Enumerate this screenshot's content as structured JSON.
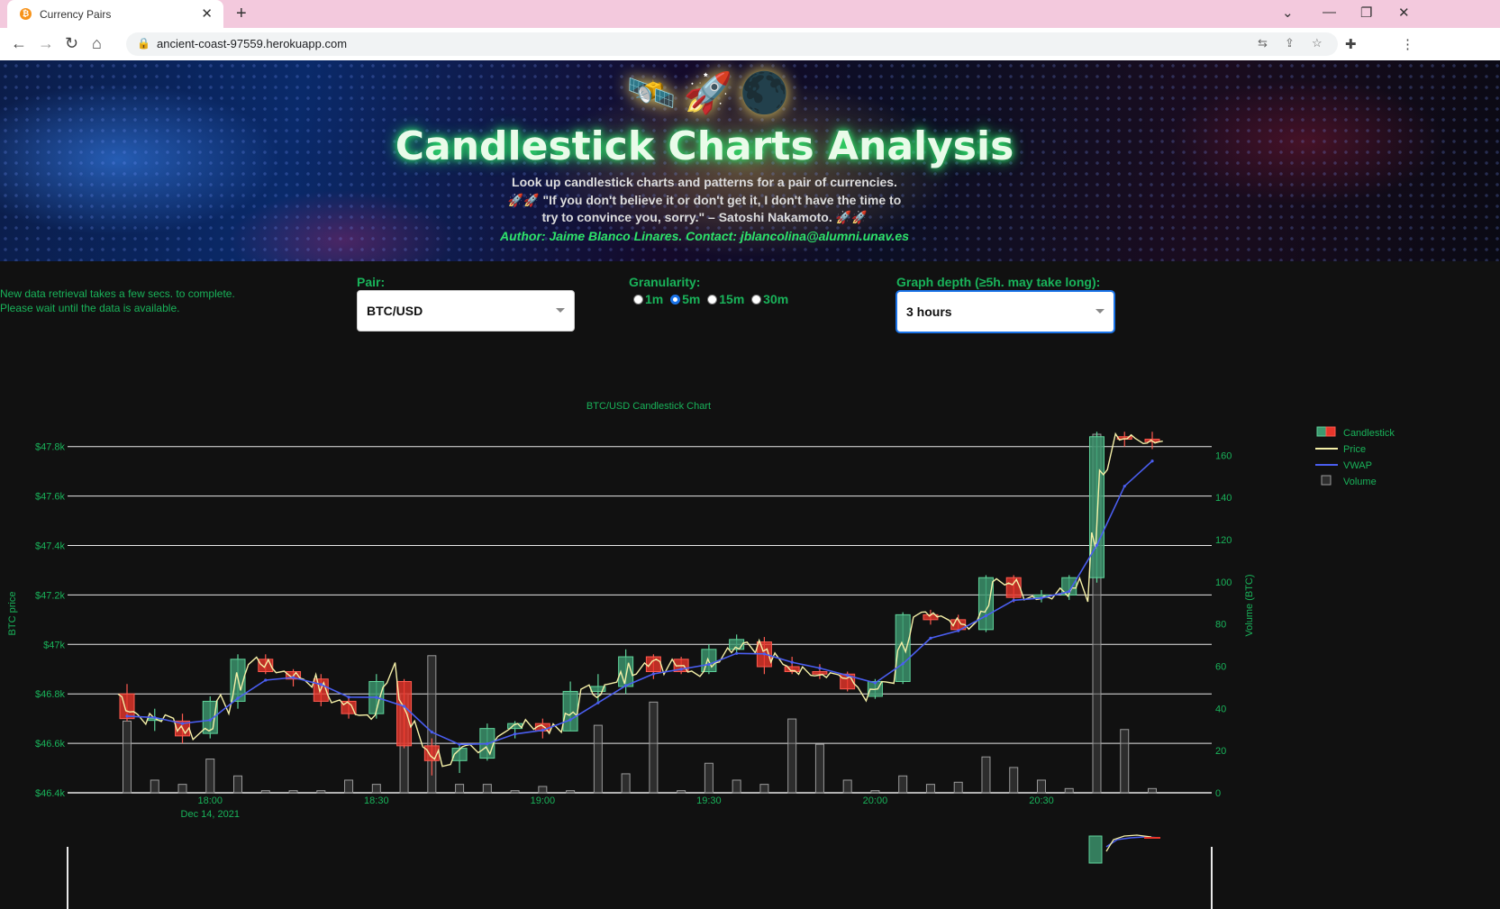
{
  "browser": {
    "tab_title": "Currency Pairs",
    "url": "ancient-coast-97559.herokuapp.com"
  },
  "banner": {
    "emojis": [
      "🛰️",
      "🚀",
      "🌑"
    ],
    "title": "Candlestick Charts Analysis",
    "line1": "Look up candlestick charts and patterns for a pair of currencies.",
    "line2": "🚀🚀 \"If you don't believe it or don't get it, I don't have the time to",
    "line3": "try to convince you, sorry.\" – Satoshi Nakamoto. 🚀🚀",
    "author": "Author: Jaime Blanco Linares. Contact: jblancolina@alumni.unav.es"
  },
  "controls": {
    "note_line1": "New data retrieval takes a few secs. to complete.",
    "note_line2": "Please wait until the data is available.",
    "pair_label": "Pair:",
    "pair_value": "BTC/USD",
    "granularity_label": "Granularity:",
    "granularity_options": [
      "1m",
      "5m",
      "15m",
      "30m"
    ],
    "granularity_selected": "5m",
    "depth_label": "Graph depth (≥5h. may take long):",
    "depth_value": "3 hours"
  },
  "chart_data": {
    "type": "candlestick",
    "title": "BTC/USD Candlestick Chart",
    "y_label": "BTC price",
    "y2_label": "Volume (BTC)",
    "y_ticks": [
      "$46.4k",
      "$46.6k",
      "$46.8k",
      "$47k",
      "$47.2k",
      "$47.4k",
      "$47.6k",
      "$47.8k"
    ],
    "y_range": [
      46400,
      47850
    ],
    "y2_ticks": [
      "0",
      "20",
      "40",
      "60",
      "80",
      "100",
      "120",
      "140",
      "160"
    ],
    "y2_range": [
      0,
      170
    ],
    "x_ticks": [
      "18:00",
      "18:30",
      "19:00",
      "19:30",
      "20:00",
      "20:30"
    ],
    "x_date": "Dec 14, 2021",
    "legend": [
      "Candlestick",
      "Price",
      "VWAP",
      "Volume"
    ],
    "colors": {
      "up": "#3d9970",
      "down": "#e8362b",
      "price": "#f5f0a8",
      "vwap": "#4a5ef0",
      "volume": "#777777",
      "axis": "#19b35a"
    },
    "candles": [
      {
        "t": "17:45",
        "o": 46800,
        "h": 46840,
        "l": 46690,
        "c": 46700
      },
      {
        "t": "17:50",
        "o": 46700,
        "h": 46740,
        "l": 46650,
        "c": 46700
      },
      {
        "t": "17:55",
        "o": 46690,
        "h": 46720,
        "l": 46600,
        "c": 46630
      },
      {
        "t": "18:00",
        "o": 46640,
        "h": 46790,
        "l": 46620,
        "c": 46770
      },
      {
        "t": "18:05",
        "o": 46770,
        "h": 46960,
        "l": 46740,
        "c": 46940
      },
      {
        "t": "18:10",
        "o": 46940,
        "h": 46960,
        "l": 46880,
        "c": 46890
      },
      {
        "t": "18:15",
        "o": 46890,
        "h": 46900,
        "l": 46830,
        "c": 46860
      },
      {
        "t": "18:20",
        "o": 46860,
        "h": 46880,
        "l": 46750,
        "c": 46770
      },
      {
        "t": "18:25",
        "o": 46770,
        "h": 46790,
        "l": 46700,
        "c": 46720
      },
      {
        "t": "18:30",
        "o": 46720,
        "h": 46880,
        "l": 46700,
        "c": 46850
      },
      {
        "t": "18:35",
        "o": 46850,
        "h": 46860,
        "l": 46580,
        "c": 46590
      },
      {
        "t": "18:40",
        "o": 46590,
        "h": 46620,
        "l": 46470,
        "c": 46530
      },
      {
        "t": "18:45",
        "o": 46530,
        "h": 46590,
        "l": 46480,
        "c": 46580
      },
      {
        "t": "18:50",
        "o": 46540,
        "h": 46680,
        "l": 46530,
        "c": 46660
      },
      {
        "t": "18:55",
        "o": 46660,
        "h": 46690,
        "l": 46620,
        "c": 46680
      },
      {
        "t": "19:00",
        "o": 46680,
        "h": 46700,
        "l": 46620,
        "c": 46650
      },
      {
        "t": "19:05",
        "o": 46650,
        "h": 46850,
        "l": 46650,
        "c": 46810
      },
      {
        "t": "19:10",
        "o": 46810,
        "h": 46880,
        "l": 46770,
        "c": 46830
      },
      {
        "t": "19:15",
        "o": 46830,
        "h": 46980,
        "l": 46800,
        "c": 46950
      },
      {
        "t": "19:20",
        "o": 46950,
        "h": 46960,
        "l": 46860,
        "c": 46890
      },
      {
        "t": "19:25",
        "o": 46940,
        "h": 46950,
        "l": 46880,
        "c": 46890
      },
      {
        "t": "19:30",
        "o": 46890,
        "h": 47000,
        "l": 46880,
        "c": 46980
      },
      {
        "t": "19:35",
        "o": 46980,
        "h": 47040,
        "l": 46960,
        "c": 47020
      },
      {
        "t": "19:40",
        "o": 47010,
        "h": 47030,
        "l": 46880,
        "c": 46910
      },
      {
        "t": "19:45",
        "o": 46910,
        "h": 46950,
        "l": 46880,
        "c": 46890
      },
      {
        "t": "19:50",
        "o": 46890,
        "h": 46920,
        "l": 46860,
        "c": 46880
      },
      {
        "t": "19:55",
        "o": 46880,
        "h": 46890,
        "l": 46810,
        "c": 46820
      },
      {
        "t": "20:00",
        "o": 46790,
        "h": 46860,
        "l": 46780,
        "c": 46850
      },
      {
        "t": "20:05",
        "o": 46850,
        "h": 47130,
        "l": 46840,
        "c": 47120
      },
      {
        "t": "20:10",
        "o": 47120,
        "h": 47140,
        "l": 47080,
        "c": 47100
      },
      {
        "t": "20:15",
        "o": 47100,
        "h": 47120,
        "l": 47050,
        "c": 47060
      },
      {
        "t": "20:20",
        "o": 47060,
        "h": 47280,
        "l": 47050,
        "c": 47270
      },
      {
        "t": "20:25",
        "o": 47270,
        "h": 47280,
        "l": 47170,
        "c": 47190
      },
      {
        "t": "20:30",
        "o": 47190,
        "h": 47220,
        "l": 47170,
        "c": 47200
      },
      {
        "t": "20:35",
        "o": 47200,
        "h": 47280,
        "l": 47180,
        "c": 47270
      },
      {
        "t": "20:40",
        "o": 47270,
        "h": 47860,
        "l": 47250,
        "c": 47840
      },
      {
        "t": "20:45",
        "o": 47840,
        "h": 47860,
        "l": 47800,
        "c": 47830
      },
      {
        "t": "20:50",
        "o": 47830,
        "h": 47860,
        "l": 47790,
        "c": 47820
      }
    ],
    "volumes": [
      34,
      6,
      4,
      16,
      8,
      1,
      1,
      1,
      6,
      4,
      47,
      65,
      4,
      4,
      1,
      3,
      1,
      32,
      9,
      43,
      1,
      14,
      6,
      4,
      35,
      23,
      6,
      1,
      8,
      4,
      5,
      17,
      12,
      6,
      2,
      170,
      30,
      2
    ]
  }
}
